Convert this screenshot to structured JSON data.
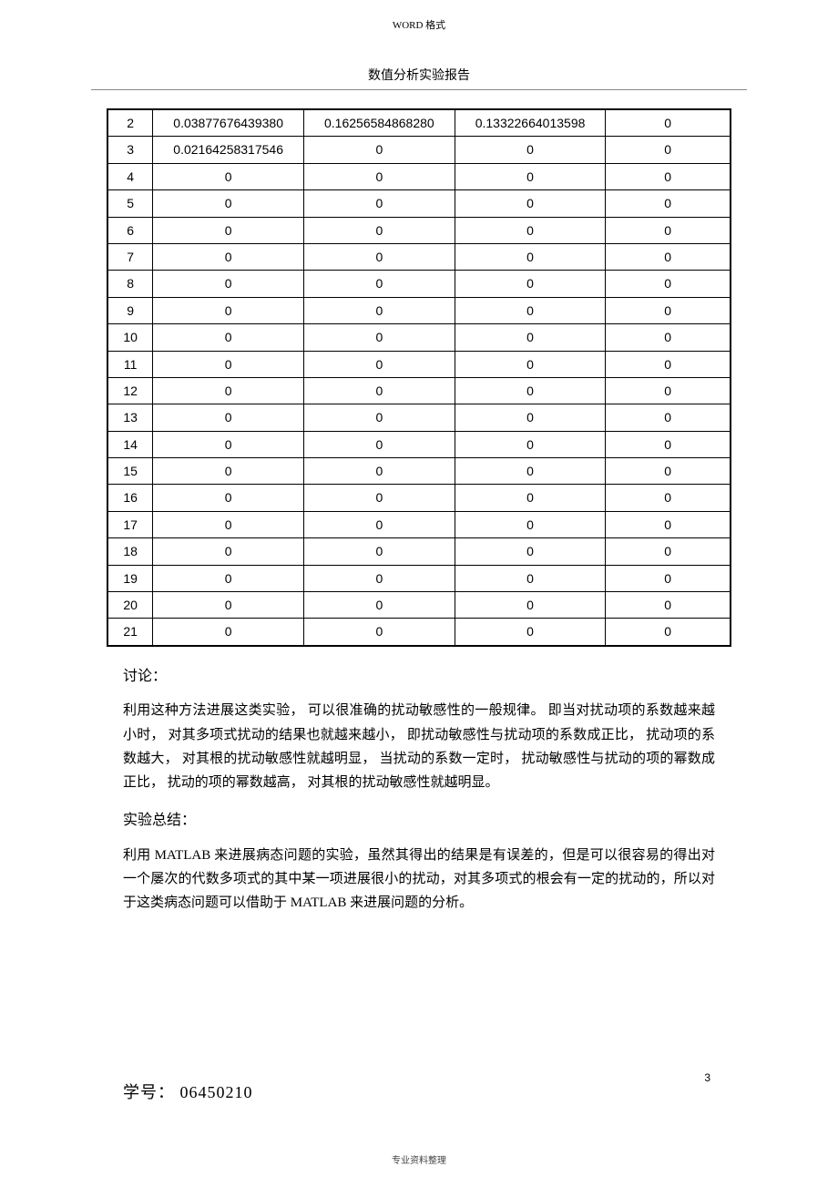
{
  "header_small": "WORD 格式",
  "subtitle": "数值分析实验报告",
  "table": {
    "rows": [
      [
        "2",
        "0.03877676439380",
        "0.16256584868280",
        "0.13322664013598",
        "0"
      ],
      [
        "3",
        "0.02164258317546",
        "0",
        "0",
        "0"
      ],
      [
        "4",
        "0",
        "0",
        "0",
        "0"
      ],
      [
        "5",
        "0",
        "0",
        "0",
        "0"
      ],
      [
        "6",
        "0",
        "0",
        "0",
        "0"
      ],
      [
        "7",
        "0",
        "0",
        "0",
        "0"
      ],
      [
        "8",
        "0",
        "0",
        "0",
        "0"
      ],
      [
        "9",
        "0",
        "0",
        "0",
        "0"
      ],
      [
        "10",
        "0",
        "0",
        "0",
        "0"
      ],
      [
        "11",
        "0",
        "0",
        "0",
        "0"
      ],
      [
        "12",
        "0",
        "0",
        "0",
        "0"
      ],
      [
        "13",
        "0",
        "0",
        "0",
        "0"
      ],
      [
        "14",
        "0",
        "0",
        "0",
        "0"
      ],
      [
        "15",
        "0",
        "0",
        "0",
        "0"
      ],
      [
        "16",
        "0",
        "0",
        "0",
        "0"
      ],
      [
        "17",
        "0",
        "0",
        "0",
        "0"
      ],
      [
        "18",
        "0",
        "0",
        "0",
        "0"
      ],
      [
        "19",
        "0",
        "0",
        "0",
        "0"
      ],
      [
        "20",
        "0",
        "0",
        "0",
        "0"
      ],
      [
        "21",
        "0",
        "0",
        "0",
        "0"
      ]
    ]
  },
  "discussion_title": "讨论：",
  "discussion_text": "利用这种方法进展这类实验，  可以很准确的扰动敏感性的一般规律。  即当对扰动项的系数越来越小时，  对其多项式扰动的结果也就越来越小，  即扰动敏感性与扰动项的系数成正比，  扰动项的系数越大，  对其根的扰动敏感性就越明显，  当扰动的系数一定时，  扰动敏感性与扰动的项的幂数成正比，  扰动的项的幂数越高，  对其根的扰动敏感性就越明显。",
  "summary_title": "实验总结：",
  "summary_text": "利用 MATLAB   来进展病态问题的实验，虽然其得出的结果是有误差的，但是可以很容易的得出对一个屡次的代数多项式的其中某一项进展很小的扰动，对其多项式的根会有一定的扰动的，所以对于这类病态问题可以借助于 MATLAB 来进展问题的分析。",
  "student_id_label": "学号：  06450210",
  "page_number": "3",
  "footer_text": "专业资料整理"
}
